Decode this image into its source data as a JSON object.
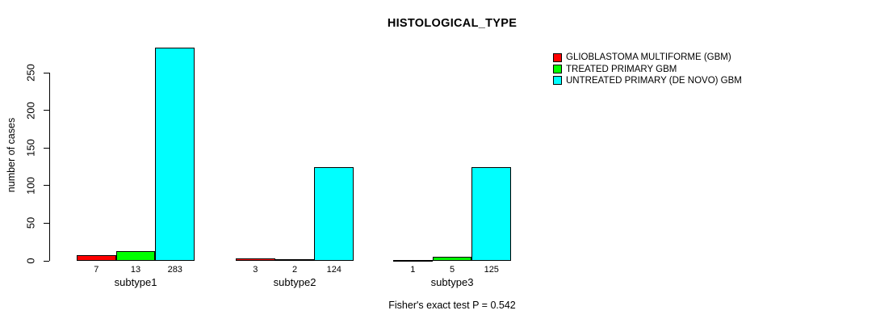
{
  "chart_data": {
    "type": "bar",
    "title": "HISTOLOGICAL_TYPE",
    "ylabel": "number of cases",
    "xlabel": "",
    "categories": [
      "subtype1",
      "subtype2",
      "subtype3"
    ],
    "series": [
      {
        "name": "GLIOBLASTOMA MULTIFORME (GBM)",
        "color": "#ff0000",
        "values": [
          7,
          3,
          1
        ]
      },
      {
        "name": "TREATED PRIMARY GBM",
        "color": "#00ff00",
        "values": [
          13,
          2,
          5
        ]
      },
      {
        "name": "UNTREATED PRIMARY (DE NOVO) GBM",
        "color": "#00ffff",
        "values": [
          283,
          124,
          125
        ]
      }
    ],
    "yticks": [
      0,
      50,
      100,
      150,
      200,
      250
    ],
    "ylim": [
      0,
      283
    ],
    "grid": false,
    "bar_value_labels_shown": true,
    "legend_position": "top-right",
    "footnote": "Fisher's exact test P = 0.542"
  }
}
